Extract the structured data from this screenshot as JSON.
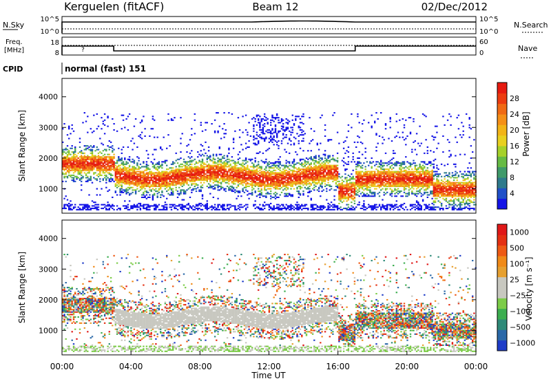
{
  "header": {
    "station": "Kerguelen (fitACF)",
    "beam": "Beam 12",
    "date": "02/Dec/2012"
  },
  "panels": {
    "nsky": {
      "label": "N.Sky",
      "ticks_left": [
        "10^5",
        "10^0"
      ],
      "ticks_right": [
        "10^5",
        "10^0"
      ],
      "right_label": "N.Search"
    },
    "freq": {
      "label_lines": [
        "Freq.",
        "[MHz]"
      ],
      "ticks_left": [
        "18",
        "8"
      ],
      "ticks_right": [
        "60",
        "0"
      ],
      "right_label": "Nave",
      "marker": "?"
    },
    "cpid": {
      "label": "CPID",
      "text": "normal (fast) 151"
    }
  },
  "chart_data": [
    {
      "type": "heatmap",
      "name": "power",
      "ylabel": "Slant Range [km]",
      "ylim": [
        200,
        4600
      ],
      "yticks": [
        "1000",
        "2000",
        "3000",
        "4000"
      ],
      "xlim": [
        0,
        24
      ],
      "colorbar": {
        "label": "Power [dB]",
        "ticks": [
          "4",
          "8",
          "12",
          "16",
          "20",
          "24",
          "28"
        ],
        "colors": [
          "#1414e6",
          "#2050c8",
          "#2e7a8c",
          "#3f9a6a",
          "#66bb44",
          "#a6d12a",
          "#e8d020",
          "#f2b418",
          "#f59018",
          "#f06a14",
          "#ec3c10",
          "#e61a10"
        ]
      },
      "features": [
        {
          "t0": 0,
          "t1": 3,
          "r0": 1500,
          "r1": 2100,
          "level": 0.75
        },
        {
          "t0": 3,
          "t1": 16,
          "r0": 1200,
          "r1": 1600,
          "level": 0.8
        },
        {
          "t0": 16,
          "t1": 17,
          "r0": 700,
          "r1": 1100,
          "level": 0.85
        },
        {
          "t0": 21.5,
          "t1": 24,
          "r0": 700,
          "r1": 1200,
          "level": 0.7
        }
      ]
    },
    {
      "type": "heatmap",
      "name": "velocity",
      "ylabel": "Slant Range [km]",
      "ylim": [
        200,
        4600
      ],
      "yticks": [
        "1000",
        "2000",
        "3000",
        "4000"
      ],
      "xlim": [
        0,
        24
      ],
      "xticks": [
        "00:00",
        "04:00",
        "08:00",
        "12:00",
        "16:00",
        "20:00",
        "00:00"
      ],
      "xlabel": "Time UT",
      "colorbar": {
        "label": "Velocity [m s⁻¹]",
        "ticks": [
          "1000",
          "500",
          "100",
          "25",
          "−25",
          "−100",
          "−500",
          "−1000"
        ],
        "colors": [
          "#1e3cc8",
          "#2a68a8",
          "#2e8a78",
          "#3cae50",
          "#7ccc48",
          "#c8c8c0",
          "#c8c8c0",
          "#e6a030",
          "#f08a18",
          "#ee5a14",
          "#e43012",
          "#e01818"
        ]
      }
    }
  ],
  "colors": {
    "axis": "#000000",
    "background": "#ffffff",
    "ground_scatter": "#c8c8c0"
  }
}
